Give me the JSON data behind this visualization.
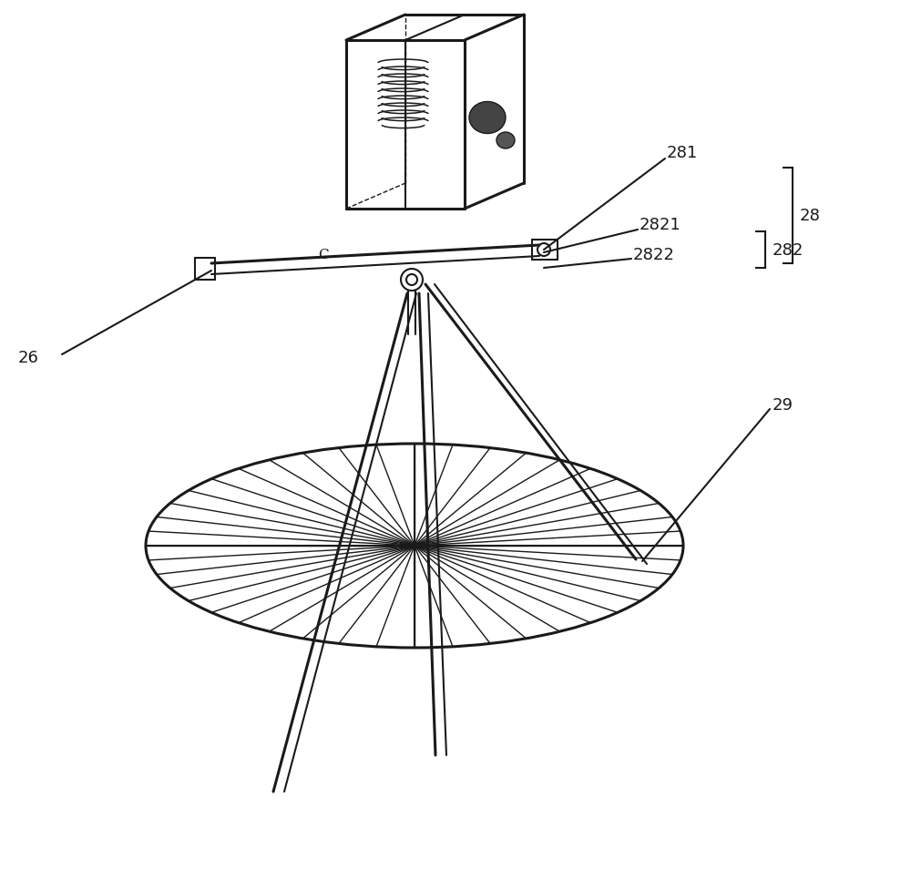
{
  "bg_color": "#ffffff",
  "line_color": "#1a1a1a",
  "lw": 1.5,
  "lw_thick": 2.2,
  "lw_thin": 1.0,
  "fs": 13,
  "figsize": [
    10,
    9.78
  ],
  "dpi": 100
}
